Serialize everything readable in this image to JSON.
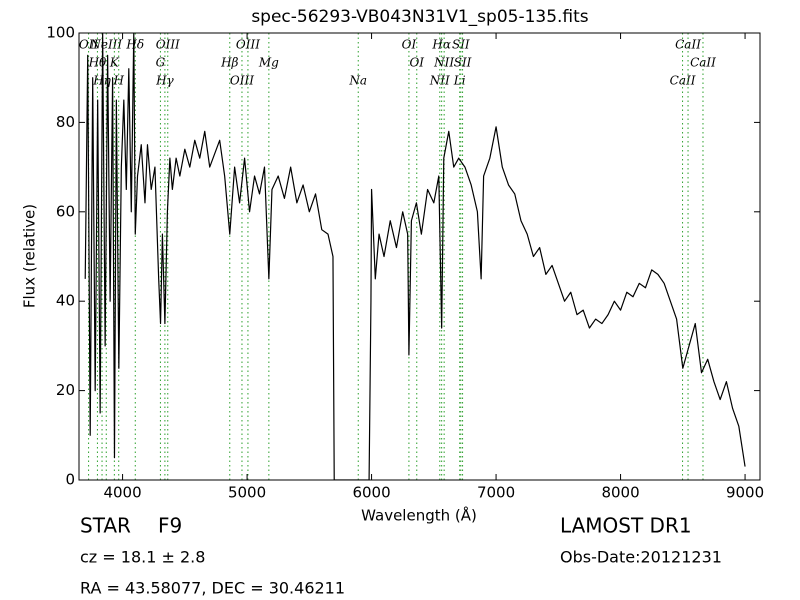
{
  "chart_data": {
    "type": "line",
    "title": "spec-56293-VB043N31V1_sp05-135.fits",
    "x_label": "Wavelength (Å)",
    "y_label": "Flux (relative)",
    "xlim": [
      3650,
      9120
    ],
    "ylim": [
      0,
      100
    ],
    "xticks": [
      4000,
      5000,
      6000,
      7000,
      8000,
      9000
    ],
    "yticks": [
      0,
      20,
      40,
      60,
      80,
      100
    ],
    "x": [
      3700,
      3720,
      3740,
      3760,
      3780,
      3800,
      3820,
      3840,
      3860,
      3880,
      3900,
      3920,
      3935,
      3950,
      3970,
      3990,
      4010,
      4030,
      4050,
      4070,
      4090,
      4102,
      4120,
      4150,
      4180,
      4200,
      4230,
      4260,
      4290,
      4305,
      4320,
      4340,
      4360,
      4380,
      4400,
      4430,
      4460,
      4500,
      4540,
      4580,
      4620,
      4660,
      4700,
      4740,
      4780,
      4820,
      4861,
      4900,
      4940,
      4980,
      5020,
      5060,
      5100,
      5140,
      5175,
      5200,
      5250,
      5300,
      5350,
      5400,
      5450,
      5500,
      5550,
      5600,
      5650,
      5690,
      5700,
      5980,
      5995,
      6000,
      6030,
      6060,
      6100,
      6150,
      6200,
      6250,
      6290,
      6300,
      6320,
      6360,
      6400,
      6450,
      6500,
      6540,
      6563,
      6580,
      6620,
      6660,
      6700,
      6750,
      6800,
      6850,
      6880,
      6900,
      6950,
      7000,
      7050,
      7100,
      7150,
      7200,
      7250,
      7300,
      7350,
      7400,
      7450,
      7500,
      7550,
      7600,
      7650,
      7700,
      7750,
      7800,
      7850,
      7900,
      7950,
      8000,
      8050,
      8100,
      8150,
      8200,
      8250,
      8300,
      8350,
      8400,
      8450,
      8500,
      8550,
      8600,
      8650,
      8700,
      8750,
      8800,
      8850,
      8900,
      8950,
      9000
    ],
    "series": [
      {
        "color": "#000000",
        "values": [
          45,
          95,
          10,
          90,
          20,
          85,
          15,
          100,
          30,
          95,
          40,
          90,
          5,
          85,
          25,
          70,
          85,
          65,
          92,
          60,
          100,
          55,
          68,
          75,
          62,
          75,
          65,
          70,
          45,
          35,
          55,
          35,
          60,
          72,
          65,
          72,
          68,
          74,
          70,
          76,
          72,
          78,
          70,
          73,
          76,
          68,
          55,
          70,
          62,
          72,
          60,
          68,
          64,
          70,
          45,
          65,
          68,
          63,
          70,
          62,
          66,
          60,
          64,
          56,
          55,
          50,
          0,
          0,
          40,
          65,
          45,
          55,
          50,
          58,
          52,
          60,
          55,
          28,
          58,
          62,
          55,
          65,
          62,
          68,
          34,
          72,
          78,
          70,
          72,
          70,
          66,
          60,
          45,
          68,
          72,
          79,
          70,
          66,
          64,
          58,
          55,
          50,
          52,
          46,
          48,
          44,
          40,
          42,
          37,
          38,
          34,
          36,
          35,
          37,
          40,
          38,
          42,
          41,
          44,
          43,
          47,
          46,
          44,
          40,
          36,
          25,
          30,
          35,
          24,
          27,
          22,
          18,
          22,
          16,
          12,
          3
        ]
      }
    ],
    "line_color": "#2ca02c",
    "spectral_lines": [
      {
        "label": "OII",
        "x": 3727
      },
      {
        "label": "Hθ",
        "x": 3798
      },
      {
        "label": "Hη",
        "x": 3835
      },
      {
        "label": "NeIII",
        "x": 3869
      },
      {
        "label": "K",
        "x": 3934
      },
      {
        "label": "H",
        "x": 3969
      },
      {
        "label": "Hδ",
        "x": 4102
      },
      {
        "label": "G",
        "x": 4304
      },
      {
        "label": "Hγ",
        "x": 4340
      },
      {
        "label": "OIII",
        "x": 4363
      },
      {
        "label": "Hβ",
        "x": 4861
      },
      {
        "label": "OIII",
        "x": 4959
      },
      {
        "label": "OIII",
        "x": 5007
      },
      {
        "label": "Mg",
        "x": 5175
      },
      {
        "label": "Na",
        "x": 5893
      },
      {
        "label": "OI",
        "x": 6300
      },
      {
        "label": "OI",
        "x": 6363
      },
      {
        "label": "NII",
        "x": 6548
      },
      {
        "label": "Hα",
        "x": 6563
      },
      {
        "label": "NII",
        "x": 6583
      },
      {
        "label": "Li",
        "x": 6708
      },
      {
        "label": "SII",
        "x": 6717
      },
      {
        "label": "SII",
        "x": 6731
      },
      {
        "label": "CaII",
        "x": 8498
      },
      {
        "label": "CaII",
        "x": 8542
      },
      {
        "label": "CaII",
        "x": 8662
      }
    ],
    "object_class": "STAR",
    "subclass": "F9",
    "cz": "cz = 18.1 ± 2.8",
    "coords": "RA = 43.58077, DEC = 30.46211",
    "survey": "LAMOST DR1",
    "obs_date": "Obs-Date:20121231"
  }
}
